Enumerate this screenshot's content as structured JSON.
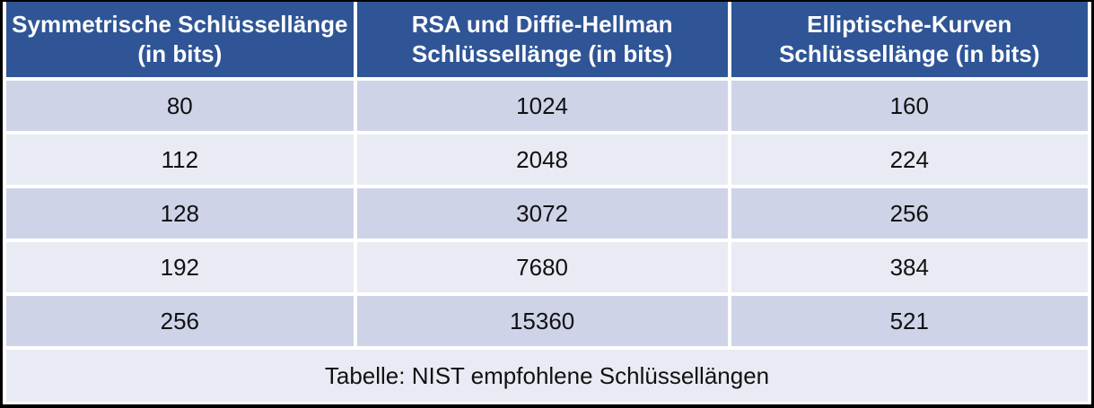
{
  "table": {
    "headers": [
      "Symmetrische Schlüssellänge\n(in bits)",
      "RSA und Diffie-Hellman\nSchlüssellänge (in bits)",
      "Elliptische-Kurven\nSchlüssellänge (in bits)"
    ],
    "rows": [
      [
        "80",
        "1024",
        "160"
      ],
      [
        "112",
        "2048",
        "224"
      ],
      [
        "128",
        "3072",
        "256"
      ],
      [
        "192",
        "7680",
        "384"
      ],
      [
        "256",
        "15360",
        "521"
      ]
    ],
    "caption": "Tabelle: NIST empfohlene Schlüssellängen"
  },
  "colors": {
    "header_bg": "#2F5596",
    "header_text": "#FFFFFF",
    "row_odd_bg": "#CED3E8",
    "row_even_bg": "#E9EBF4",
    "body_text": "#111111",
    "frame_border": "#000000",
    "gap": "#FFFFFF"
  },
  "chart_data": {
    "type": "table",
    "title": "Tabelle: NIST empfohlene Schlüssellängen",
    "columns": [
      "Symmetrische Schlüssellänge (in bits)",
      "RSA und Diffie-Hellman Schlüssellänge (in bits)",
      "Elliptische-Kurven Schlüssellänge (in bits)"
    ],
    "rows": [
      [
        80,
        1024,
        160
      ],
      [
        112,
        2048,
        224
      ],
      [
        128,
        3072,
        256
      ],
      [
        192,
        7680,
        384
      ],
      [
        256,
        15360,
        521
      ]
    ]
  }
}
